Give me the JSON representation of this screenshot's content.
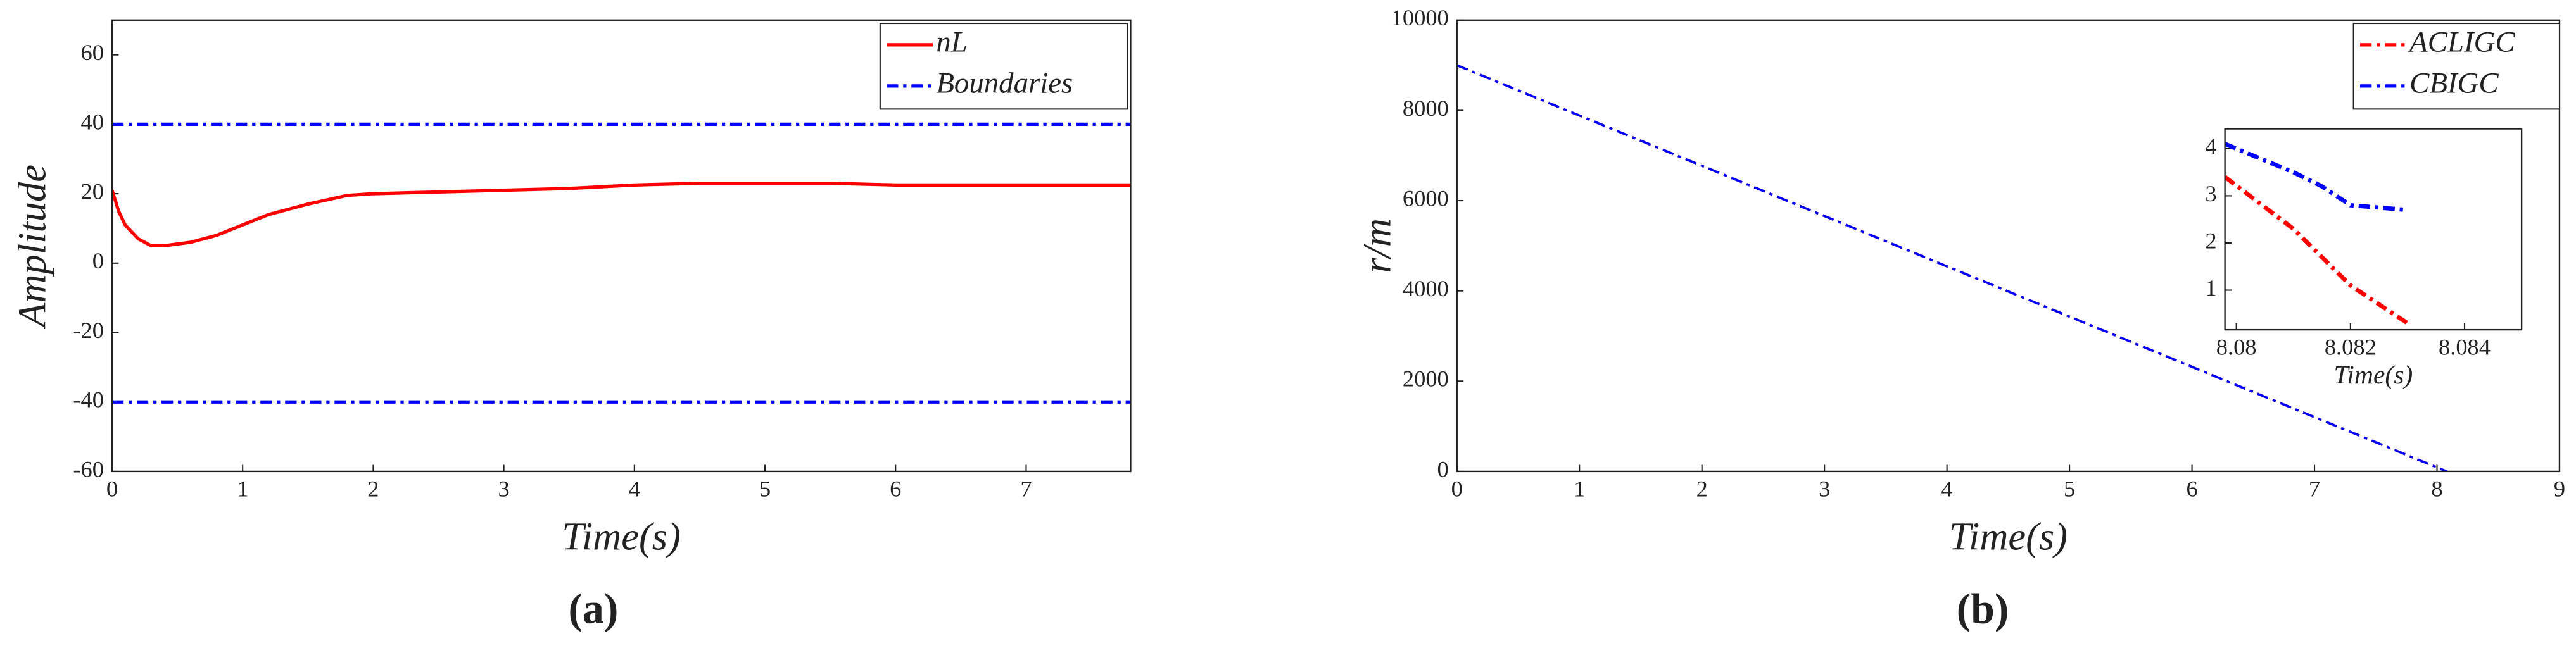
{
  "chart_data": [
    {
      "type": "line",
      "panel_label": "(a)",
      "xlabel": "Time(s)",
      "ylabel": "Amplitude",
      "xlim": [
        0,
        7.8
      ],
      "xticks": [
        0,
        1,
        2,
        3,
        4,
        5,
        6,
        7
      ],
      "ylim": [
        -60,
        70
      ],
      "yticks": [
        -60,
        -40,
        -20,
        0,
        20,
        40,
        60
      ],
      "legend": "upper right",
      "series": [
        {
          "name": "nL",
          "color": "#ff0000",
          "style": "solid",
          "x": [
            0,
            0.05,
            0.1,
            0.2,
            0.3,
            0.4,
            0.5,
            0.6,
            0.8,
            1,
            1.2,
            1.5,
            1.8,
            2,
            2.5,
            3,
            3.5,
            4,
            4.5,
            5,
            5.5,
            6,
            6.5,
            7,
            7.8
          ],
          "values": [
            21,
            15,
            11,
            7,
            5,
            5,
            5.5,
            6,
            8,
            11,
            14,
            17,
            19.5,
            20,
            20.5,
            21,
            21.5,
            22.5,
            23,
            23,
            23,
            22.5,
            22.5,
            22.5,
            22.5
          ]
        },
        {
          "name": "Boundaries",
          "color": "#0000ff",
          "style": "dashdot",
          "x": [
            0,
            7.8,
            null,
            0,
            7.8
          ],
          "values": [
            40,
            40,
            null,
            -40,
            -40
          ]
        }
      ]
    },
    {
      "type": "line",
      "panel_label": "(b)",
      "xlabel": "Time(s)",
      "ylabel": "r/m",
      "xlim": [
        0,
        9
      ],
      "xticks": [
        0,
        1,
        2,
        3,
        4,
        5,
        6,
        7,
        8,
        9
      ],
      "ylim": [
        0,
        10000
      ],
      "yticks": [
        0,
        2000,
        4000,
        6000,
        8000,
        10000
      ],
      "legend": "upper right",
      "series": [
        {
          "name": "ACLIGC",
          "color": "#ff0000",
          "style": "dashdot",
          "x": [
            0,
            8.08
          ],
          "values": [
            9000,
            0
          ]
        },
        {
          "name": "CBIGC",
          "color": "#0000ff",
          "style": "dashdot",
          "x": [
            0,
            8.08
          ],
          "values": [
            9000,
            0
          ]
        }
      ]
    },
    {
      "type": "line",
      "xlabel": "Time(s)",
      "xlim": [
        8.0798,
        8.085
      ],
      "xticks": [
        8.08,
        8.082,
        8.084
      ],
      "ylim": [
        0.16,
        4.42
      ],
      "yticks": [
        1,
        2,
        3,
        4
      ],
      "series": [
        {
          "color": "#ff0000",
          "style": "dashdot",
          "x": [
            8.0798,
            8.081,
            8.082,
            8.083
          ],
          "values": [
            3.4,
            2.3,
            1.1,
            0.3
          ]
        },
        {
          "color": "#0000ff",
          "style": "dashdot",
          "x": [
            8.0798,
            8.081,
            8.0815,
            8.082,
            8.083
          ],
          "values": [
            4.1,
            3.5,
            3.2,
            2.8,
            2.7
          ]
        }
      ]
    }
  ]
}
